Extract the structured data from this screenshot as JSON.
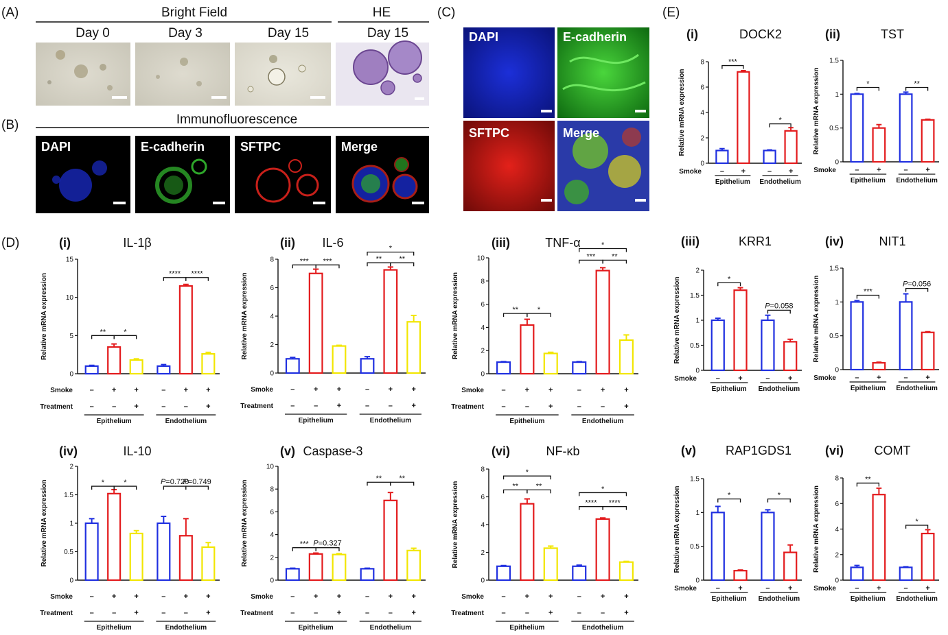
{
  "panel_labels": {
    "A": "(A)",
    "B": "(B)",
    "C": "(C)",
    "D": "(D)",
    "E": "(E)"
  },
  "panel_a": {
    "header": "Bright Field",
    "he_header": "HE",
    "days": [
      "Day 0",
      "Day 3",
      "Day 15",
      "Day 15"
    ]
  },
  "panel_b": {
    "header": "Immunofluorescence",
    "channels": [
      "DAPI",
      "E-cadherin",
      "SFTPC",
      "Merge"
    ]
  },
  "panel_c": {
    "channels": [
      "DAPI",
      "E-cadherin",
      "SFTPC",
      "Merge"
    ]
  },
  "labels": {
    "ylabel": "Relative mRNA expression",
    "smoke": "Smoke",
    "treatment": "Treatment",
    "epithelium": "Epithelium",
    "endothelium": "Endothelium",
    "plus": "+",
    "minus": "–"
  },
  "colors": {
    "blue": "#1f2fe0",
    "red": "#e31a1c",
    "yellow": "#f2e600"
  },
  "chart_data": [
    {
      "panel": "D",
      "numeral": "(i)",
      "title": "IL-1β",
      "type": "bar",
      "ylim": [
        0,
        15
      ],
      "yticks": [
        0,
        5,
        10,
        15
      ],
      "values": [
        1.0,
        3.5,
        1.8,
        1.0,
        11.5,
        2.6
      ],
      "errors": [
        0.1,
        0.4,
        0.15,
        0.2,
        0.2,
        0.2
      ],
      "colors": [
        "blue",
        "red",
        "yellow",
        "blue",
        "red",
        "yellow"
      ],
      "smoke": [
        "–",
        "+",
        "+",
        "–",
        "+",
        "+"
      ],
      "treatment": [
        "–",
        "–",
        "+",
        "–",
        "–",
        "+"
      ],
      "sig": [
        {
          "a": 0,
          "b": 1,
          "t": "**",
          "y": 5.0
        },
        {
          "a": 1,
          "b": 2,
          "t": "*",
          "y": 5.0
        },
        {
          "a": 3,
          "b": 4,
          "t": "****",
          "y": 12.6
        },
        {
          "a": 4,
          "b": 5,
          "t": "****",
          "y": 12.6
        }
      ]
    },
    {
      "panel": "D",
      "numeral": "(ii)",
      "title": "IL-6",
      "type": "bar",
      "ylim": [
        0,
        8
      ],
      "yticks": [
        0,
        2,
        4,
        6,
        8
      ],
      "values": [
        1.0,
        7.0,
        1.9,
        1.0,
        7.25,
        3.6
      ],
      "errors": [
        0.1,
        0.3,
        0.05,
        0.15,
        0.2,
        0.45
      ],
      "colors": [
        "blue",
        "red",
        "yellow",
        "blue",
        "red",
        "yellow"
      ],
      "smoke": [
        "–",
        "+",
        "+",
        "–",
        "+",
        "+"
      ],
      "treatment": [
        "–",
        "–",
        "+",
        "–",
        "–",
        "+"
      ],
      "sig": [
        {
          "a": 0,
          "b": 1,
          "t": "***",
          "y": 7.6
        },
        {
          "a": 1,
          "b": 2,
          "t": "***",
          "y": 7.6
        },
        {
          "a": 3,
          "b": 4,
          "t": "**",
          "y": 7.75
        },
        {
          "a": 4,
          "b": 5,
          "t": "**",
          "y": 7.75
        },
        {
          "a": 3,
          "b": 5,
          "t": "*",
          "y": 8.5
        }
      ]
    },
    {
      "panel": "D",
      "numeral": "(iii)",
      "title": "TNF-α",
      "type": "bar",
      "ylim": [
        0,
        10
      ],
      "yticks": [
        0,
        2,
        4,
        6,
        8,
        10
      ],
      "values": [
        1.0,
        4.2,
        1.75,
        1.0,
        8.9,
        2.9
      ],
      "errors": [
        0.05,
        0.5,
        0.1,
        0.05,
        0.25,
        0.45
      ],
      "colors": [
        "blue",
        "red",
        "yellow",
        "blue",
        "red",
        "yellow"
      ],
      "smoke": [
        "–",
        "+",
        "+",
        "–",
        "+",
        "+"
      ],
      "treatment": [
        "–",
        "–",
        "+",
        "–",
        "–",
        "+"
      ],
      "sig": [
        {
          "a": 0,
          "b": 1,
          "t": "**",
          "y": 5.2
        },
        {
          "a": 1,
          "b": 2,
          "t": "*",
          "y": 5.2
        },
        {
          "a": 3,
          "b": 4,
          "t": "***",
          "y": 9.8
        },
        {
          "a": 4,
          "b": 5,
          "t": "**",
          "y": 9.8
        },
        {
          "a": 3,
          "b": 5,
          "t": "*",
          "y": 10.8
        }
      ]
    },
    {
      "panel": "D",
      "numeral": "(iv)",
      "title": "IL-10",
      "type": "bar",
      "ylim": [
        0,
        2.0
      ],
      "yticks": [
        0,
        0.5,
        1.0,
        1.5,
        2.0
      ],
      "values": [
        1.0,
        1.52,
        0.82,
        1.0,
        0.78,
        0.58
      ],
      "errors": [
        0.08,
        0.07,
        0.05,
        0.12,
        0.3,
        0.08
      ],
      "colors": [
        "blue",
        "red",
        "yellow",
        "blue",
        "red",
        "yellow"
      ],
      "smoke": [
        "–",
        "+",
        "+",
        "–",
        "+",
        "+"
      ],
      "treatment": [
        "–",
        "–",
        "+",
        "–",
        "–",
        "+"
      ],
      "sig": [
        {
          "a": 0,
          "b": 1,
          "t": "*",
          "y": 1.65
        },
        {
          "a": 1,
          "b": 2,
          "t": "*",
          "y": 1.65
        },
        {
          "a": 3,
          "b": 4,
          "t": "P=0.720",
          "y": 1.65,
          "p": true
        },
        {
          "a": 4,
          "b": 5,
          "t": "P=0.749",
          "y": 1.65,
          "p": true
        }
      ]
    },
    {
      "panel": "D",
      "numeral": "(v)",
      "title": "Caspase-3",
      "type": "bar",
      "ylim": [
        0,
        10
      ],
      "yticks": [
        0,
        2,
        4,
        6,
        8,
        10
      ],
      "values": [
        1.0,
        2.3,
        2.25,
        1.0,
        7.0,
        2.6
      ],
      "errors": [
        0.05,
        0.08,
        0.08,
        0.05,
        0.7,
        0.2
      ],
      "colors": [
        "blue",
        "red",
        "yellow",
        "blue",
        "red",
        "yellow"
      ],
      "smoke": [
        "–",
        "+",
        "+",
        "–",
        "+",
        "+"
      ],
      "treatment": [
        "–",
        "–",
        "+",
        "–",
        "–",
        "+"
      ],
      "sig": [
        {
          "a": 0,
          "b": 1,
          "t": "***",
          "y": 2.85
        },
        {
          "a": 1,
          "b": 2,
          "t": "P=0.327",
          "y": 2.85,
          "p": true
        },
        {
          "a": 3,
          "b": 4,
          "t": "**",
          "y": 8.6
        },
        {
          "a": 4,
          "b": 5,
          "t": "**",
          "y": 8.6
        }
      ]
    },
    {
      "panel": "D",
      "numeral": "(vi)",
      "title": "NF-κb",
      "type": "bar",
      "ylim": [
        0,
        8
      ],
      "yticks": [
        0,
        2,
        4,
        6,
        8
      ],
      "values": [
        1.0,
        5.5,
        2.3,
        1.0,
        4.4,
        1.3
      ],
      "errors": [
        0.05,
        0.35,
        0.15,
        0.08,
        0.08,
        0.05
      ],
      "colors": [
        "blue",
        "red",
        "yellow",
        "blue",
        "red",
        "yellow"
      ],
      "smoke": [
        "–",
        "+",
        "+",
        "–",
        "+",
        "+"
      ],
      "treatment": [
        "–",
        "–",
        "+",
        "–",
        "–",
        "+"
      ],
      "sig": [
        {
          "a": 0,
          "b": 1,
          "t": "**",
          "y": 6.5
        },
        {
          "a": 1,
          "b": 2,
          "t": "**",
          "y": 6.5
        },
        {
          "a": 0,
          "b": 2,
          "t": "*",
          "y": 7.5
        },
        {
          "a": 3,
          "b": 4,
          "t": "****",
          "y": 5.3
        },
        {
          "a": 4,
          "b": 5,
          "t": "****",
          "y": 5.3
        },
        {
          "a": 3,
          "b": 5,
          "t": "*",
          "y": 6.3
        }
      ]
    },
    {
      "panel": "E",
      "numeral": "(i)",
      "title": "DOCK2",
      "type": "bar",
      "ylim": [
        0,
        8
      ],
      "yticks": [
        0,
        2,
        4,
        6,
        8
      ],
      "values": [
        1.0,
        7.2,
        1.0,
        2.55
      ],
      "errors": [
        0.15,
        0.1,
        0.05,
        0.25
      ],
      "colors": [
        "blue",
        "red",
        "blue",
        "red"
      ],
      "smoke": [
        "–",
        "+",
        "–",
        "+"
      ],
      "sig": [
        {
          "a": 0,
          "b": 1,
          "t": "***",
          "y": 7.7
        },
        {
          "a": 2,
          "b": 3,
          "t": "*",
          "y": 3.1
        }
      ]
    },
    {
      "panel": "E",
      "numeral": "(ii)",
      "title": "TST",
      "type": "bar",
      "ylim": [
        0,
        1.5
      ],
      "yticks": [
        0,
        0.5,
        1.0,
        1.5
      ],
      "values": [
        1.0,
        0.5,
        1.0,
        0.62
      ],
      "errors": [
        0.01,
        0.05,
        0.03,
        0.01
      ],
      "colors": [
        "blue",
        "red",
        "blue",
        "red"
      ],
      "smoke": [
        "–",
        "+",
        "–",
        "+"
      ],
      "sig": [
        {
          "a": 0,
          "b": 1,
          "t": "*",
          "y": 1.1
        },
        {
          "a": 2,
          "b": 3,
          "t": "**",
          "y": 1.1
        }
      ]
    },
    {
      "panel": "E",
      "numeral": "(iii)",
      "title": "KRR1",
      "type": "bar",
      "ylim": [
        0,
        2.0
      ],
      "yticks": [
        0,
        0.5,
        1.0,
        1.5,
        2.0
      ],
      "values": [
        1.0,
        1.6,
        1.0,
        0.57
      ],
      "errors": [
        0.04,
        0.05,
        0.1,
        0.05
      ],
      "colors": [
        "blue",
        "red",
        "blue",
        "red"
      ],
      "smoke": [
        "–",
        "+",
        "–",
        "+"
      ],
      "sig": [
        {
          "a": 0,
          "b": 1,
          "t": "*",
          "y": 1.75
        },
        {
          "a": 2,
          "b": 3,
          "t": "P=0.058",
          "y": 1.2,
          "p": true
        }
      ]
    },
    {
      "panel": "E",
      "numeral": "(iv)",
      "title": "NIT1",
      "type": "bar",
      "ylim": [
        0,
        1.5
      ],
      "yticks": [
        0,
        0.5,
        1.0,
        1.5
      ],
      "values": [
        1.0,
        0.1,
        1.0,
        0.55
      ],
      "errors": [
        0.02,
        0.01,
        0.12,
        0.01
      ],
      "colors": [
        "blue",
        "red",
        "blue",
        "red"
      ],
      "smoke": [
        "–",
        "+",
        "–",
        "+"
      ],
      "sig": [
        {
          "a": 0,
          "b": 1,
          "t": "***",
          "y": 1.1
        },
        {
          "a": 2,
          "b": 3,
          "t": "P=0.056",
          "y": 1.2,
          "p": true
        }
      ]
    },
    {
      "panel": "E",
      "numeral": "(v)",
      "title": "RAP1GDS1",
      "type": "bar",
      "ylim": [
        0,
        1.5
      ],
      "yticks": [
        0,
        0.5,
        1.0,
        1.5
      ],
      "values": [
        1.0,
        0.14,
        1.0,
        0.41
      ],
      "errors": [
        0.09,
        0.01,
        0.04,
        0.11
      ],
      "colors": [
        "blue",
        "red",
        "blue",
        "red"
      ],
      "smoke": [
        "–",
        "+",
        "–",
        "+"
      ],
      "sig": [
        {
          "a": 0,
          "b": 1,
          "t": "*",
          "y": 1.2
        },
        {
          "a": 2,
          "b": 3,
          "t": "*",
          "y": 1.2
        }
      ]
    },
    {
      "panel": "E",
      "numeral": "(vi)",
      "title": "COMT",
      "type": "bar",
      "ylim": [
        0,
        8
      ],
      "yticks": [
        0,
        2,
        4,
        6,
        8
      ],
      "values": [
        1.0,
        6.7,
        1.0,
        3.65
      ],
      "errors": [
        0.15,
        0.5,
        0.05,
        0.3
      ],
      "colors": [
        "blue",
        "red",
        "blue",
        "red"
      ],
      "smoke": [
        "–",
        "+",
        "–",
        "+"
      ],
      "sig": [
        {
          "a": 0,
          "b": 1,
          "t": "**",
          "y": 7.6
        },
        {
          "a": 2,
          "b": 3,
          "t": "*",
          "y": 4.3
        }
      ]
    }
  ]
}
